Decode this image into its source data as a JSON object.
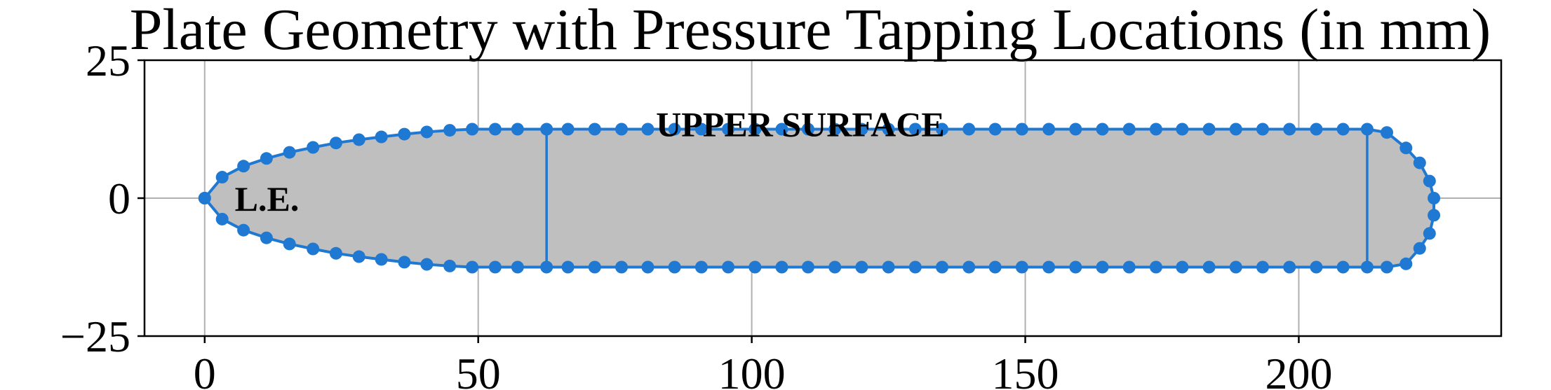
{
  "chart_data": {
    "type": "scatter",
    "title": "Plate Geometry with Pressure Tapping Locations (in mm)",
    "xlabel": "",
    "ylabel": "",
    "xlim": [
      -11,
      237
    ],
    "ylim": [
      -25,
      25
    ],
    "xticks": [
      0,
      50,
      100,
      150,
      200
    ],
    "yticks": [
      -25,
      0,
      25
    ],
    "xtick_labels": [
      "0",
      "50",
      "100",
      "150",
      "200"
    ],
    "ytick_labels": [
      "−25",
      "0",
      "25"
    ],
    "grid": true,
    "colors": {
      "outline": "#1f78d1",
      "fill": "#bfbfbf",
      "grid": "#b0b0b0",
      "axes": "#000000"
    },
    "annotations": [
      {
        "text": "L.E.",
        "x": 5.5,
        "y": 0
      },
      {
        "text": "UPPER SURFACE",
        "x": 82.5,
        "y": 13.5
      }
    ],
    "section_lines": [
      {
        "x": 62.5,
        "y": [
          -12.5,
          12.5
        ]
      },
      {
        "x": 212.5,
        "y": [
          -12.5,
          12.5
        ]
      }
    ],
    "series": [
      {
        "marker": "o",
        "x": [
          0,
          3.2,
          7.1,
          11.3,
          15.5,
          19.8,
          24,
          28.2,
          32.3,
          36.5,
          40.6,
          44.8,
          48.9,
          53.1,
          57.2,
          62.5,
          66.4,
          71.3,
          76.2,
          81,
          85.9,
          90.8,
          95.7,
          100.6,
          105.5,
          110.3,
          115.2,
          120.1,
          125,
          129.9,
          134.8,
          139.7,
          144.5,
          149.4,
          154.3,
          159.2,
          164.1,
          169,
          173.9,
          178.7,
          183.6,
          188.5,
          193.4,
          198.3,
          203.2,
          208.1,
          212.5,
          216.1,
          219.6,
          222.1,
          223.9,
          224.7,
          224.7,
          223.9,
          222.1,
          219.6,
          216.1,
          212.5,
          208.1,
          203.2,
          198.3,
          193.4,
          188.5,
          183.6,
          178.7,
          173.9,
          169,
          164.1,
          159.2,
          154.3,
          149.4,
          144.5,
          139.7,
          134.8,
          129.9,
          125,
          120.1,
          115.2,
          110.3,
          105.5,
          100.6,
          95.7,
          90.8,
          85.9,
          81,
          76.2,
          71.3,
          66.4,
          62.5,
          57.2,
          53.1,
          48.9,
          44.8,
          40.6,
          36.5,
          32.3,
          28.2,
          24,
          19.8,
          15.5,
          11.3,
          7.1,
          3.2,
          0
        ],
        "y": [
          0,
          3.8,
          5.8,
          7.2,
          8.3,
          9.2,
          10,
          10.6,
          11.1,
          11.6,
          12,
          12.3,
          12.5,
          12.5,
          12.5,
          12.5,
          12.5,
          12.5,
          12.5,
          12.5,
          12.5,
          12.5,
          12.5,
          12.5,
          12.5,
          12.5,
          12.5,
          12.5,
          12.5,
          12.5,
          12.5,
          12.5,
          12.5,
          12.5,
          12.5,
          12.5,
          12.5,
          12.5,
          12.5,
          12.5,
          12.5,
          12.5,
          12.5,
          12.5,
          12.5,
          12.5,
          12.5,
          11.9,
          9.1,
          6.4,
          3.1,
          0,
          -3.1,
          -6.4,
          -9.1,
          -11.9,
          -12.5,
          -12.5,
          -12.5,
          -12.5,
          -12.5,
          -12.5,
          -12.5,
          -12.5,
          -12.5,
          -12.5,
          -12.5,
          -12.5,
          -12.5,
          -12.5,
          -12.5,
          -12.5,
          -12.5,
          -12.5,
          -12.5,
          -12.5,
          -12.5,
          -12.5,
          -12.5,
          -12.5,
          -12.5,
          -12.5,
          -12.5,
          -12.5,
          -12.5,
          -12.5,
          -12.5,
          -12.5,
          -12.5,
          -12.5,
          -12.5,
          -12.5,
          -12.3,
          -12,
          -11.6,
          -11.1,
          -10.6,
          -10,
          -9.2,
          -8.3,
          -7.2,
          -5.8,
          -3.8,
          0
        ]
      }
    ]
  }
}
